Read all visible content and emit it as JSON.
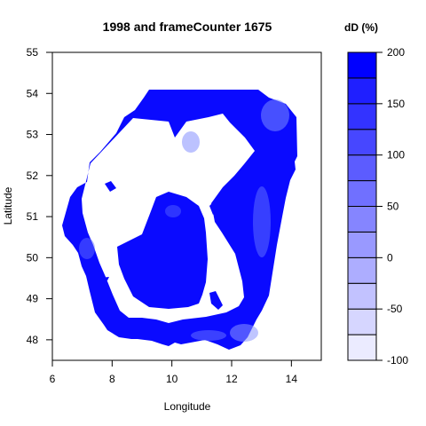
{
  "chart_data": {
    "type": "heatmap",
    "title": "1998 and frameCounter 1675",
    "xlabel": "Longitude",
    "ylabel": "Latitude",
    "xlim": [
      6,
      15
    ],
    "ylim": [
      47.5,
      55
    ],
    "xticks": [
      6,
      8,
      10,
      12,
      14
    ],
    "yticks": [
      48,
      49,
      50,
      51,
      52,
      53,
      54,
      55
    ],
    "colorbar": {
      "title": "dD (%)",
      "range": [
        -100,
        200
      ],
      "levels": [
        -100,
        -75,
        -50,
        -25,
        0,
        25,
        50,
        75,
        100,
        125,
        150,
        175,
        200
      ],
      "tick_labels": [
        "-100",
        "-50",
        "0",
        "50",
        "100",
        "150",
        "200"
      ],
      "tick_values": [
        -100,
        -50,
        0,
        50,
        100,
        150,
        200
      ],
      "colors": [
        "#ffffff",
        "#ebebff",
        "#d6d6ff",
        "#c2c2ff",
        "#adadff",
        "#9999ff",
        "#8585ff",
        "#7070ff",
        "#5c5cff",
        "#4747ff",
        "#3333ff",
        "#1f1fff",
        "#0000ff"
      ]
    },
    "field_description_colors": {
      "dominant": "#0a0aff",
      "light_patches": "#5c6bff"
    }
  }
}
